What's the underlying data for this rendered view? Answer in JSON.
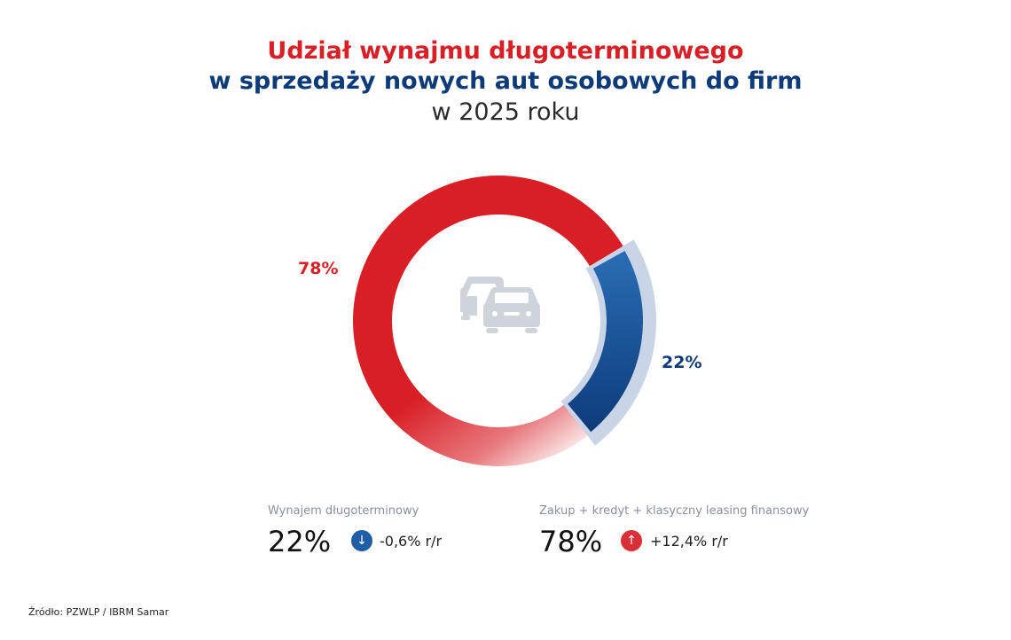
{
  "title": {
    "line1": "Udział wynajmu długoterminowego",
    "line2": "w sprzedaży nowych aut osobowych do firm",
    "line3": "w 2025 roku"
  },
  "colors": {
    "red": "#d91f26",
    "navy": "#0d3b7a",
    "blue": "#2a6db5",
    "pale_blue": "#c9d5e6",
    "icon_gray": "#cfd3da"
  },
  "center_icon": "cars-icon",
  "chart_data": {
    "type": "pie",
    "subtype": "donut",
    "categories": [
      "Zakup + kredyt + klasyczny leasing finansowy",
      "Wynajem długoterminowy"
    ],
    "values": [
      78,
      22
    ],
    "data_labels": [
      "78%",
      "22%"
    ]
  },
  "legend": [
    {
      "caption": "Wynajem długoterminowy",
      "value": "22%",
      "change": "-0,6% r/r",
      "direction": "down",
      "icon": "arrow-down-icon"
    },
    {
      "caption": "Zakup + kredyt + klasyczny leasing finansowy",
      "value": "78%",
      "change": "+12,4% r/r",
      "direction": "up",
      "icon": "arrow-up-icon"
    }
  ],
  "source": "Źródło: PZWLP / IBRM Samar"
}
